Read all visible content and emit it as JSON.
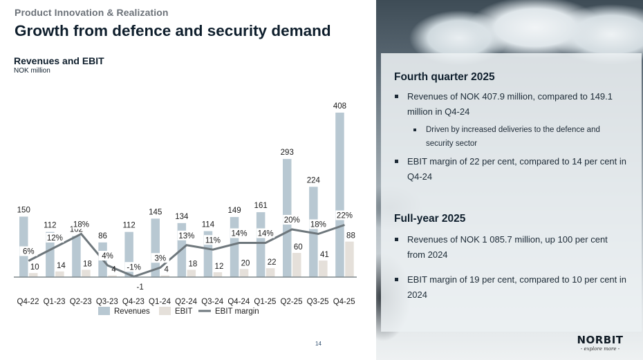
{
  "header": {
    "section": "Product Innovation & Realization",
    "title": "Growth from defence and security demand"
  },
  "chart_header": {
    "title": "Revenues and EBIT",
    "unit": "NOK million"
  },
  "colors": {
    "revenues": "#b8c8d2",
    "ebit": "#e5e0da",
    "ebit_margin": "#6e777c",
    "title": "#0e1e2c"
  },
  "chart_data": {
    "type": "bar",
    "title": "Revenues and EBIT",
    "ylabel": "NOK million",
    "xlabel": "",
    "categories": [
      "Q4-22",
      "Q1-23",
      "Q2-23",
      "Q3-23",
      "Q4-23",
      "Q1-24",
      "Q2-24",
      "Q3-24",
      "Q4-24",
      "Q1-25",
      "Q2-25",
      "Q3-25",
      "Q4-25"
    ],
    "series": [
      {
        "name": "Revenues",
        "kind": "bar",
        "values": [
          150,
          112,
          102,
          86,
          112,
          145,
          134,
          114,
          149,
          161,
          293,
          224,
          408
        ]
      },
      {
        "name": "EBIT",
        "kind": "bar",
        "values": [
          10,
          14,
          18,
          4,
          -1,
          4,
          18,
          12,
          20,
          22,
          60,
          41,
          88
        ]
      },
      {
        "name": "EBIT margin",
        "kind": "line",
        "unit": "%",
        "values": [
          6,
          12,
          18,
          4,
          -1,
          3,
          13,
          11,
          14,
          14,
          20,
          18,
          22
        ]
      }
    ],
    "legend": [
      "Revenues",
      "EBIT",
      "EBIT margin"
    ],
    "legend_position": "bottom",
    "ylim": [
      0,
      420
    ],
    "grid": false
  },
  "panel": {
    "q4": {
      "heading": "Fourth quarter 2025",
      "bullets": [
        "Revenues of NOK 407.9 million, compared to 149.1 million in Q4-24",
        "Driven by increased deliveries to the defence and security sector",
        "EBIT margin of 22 per cent, compared to 14 per cent in Q4-24"
      ]
    },
    "fy": {
      "heading": "Full-year 2025",
      "bullets": [
        "Revenues of NOK 1 085.7 million, up 100 per cent from 2024",
        "EBIT margin of 19 per cent, compared to 10 per cent in 2024"
      ]
    }
  },
  "footer": {
    "page_number": "14",
    "logo": "NORBIT",
    "tagline": "- explore more -"
  }
}
